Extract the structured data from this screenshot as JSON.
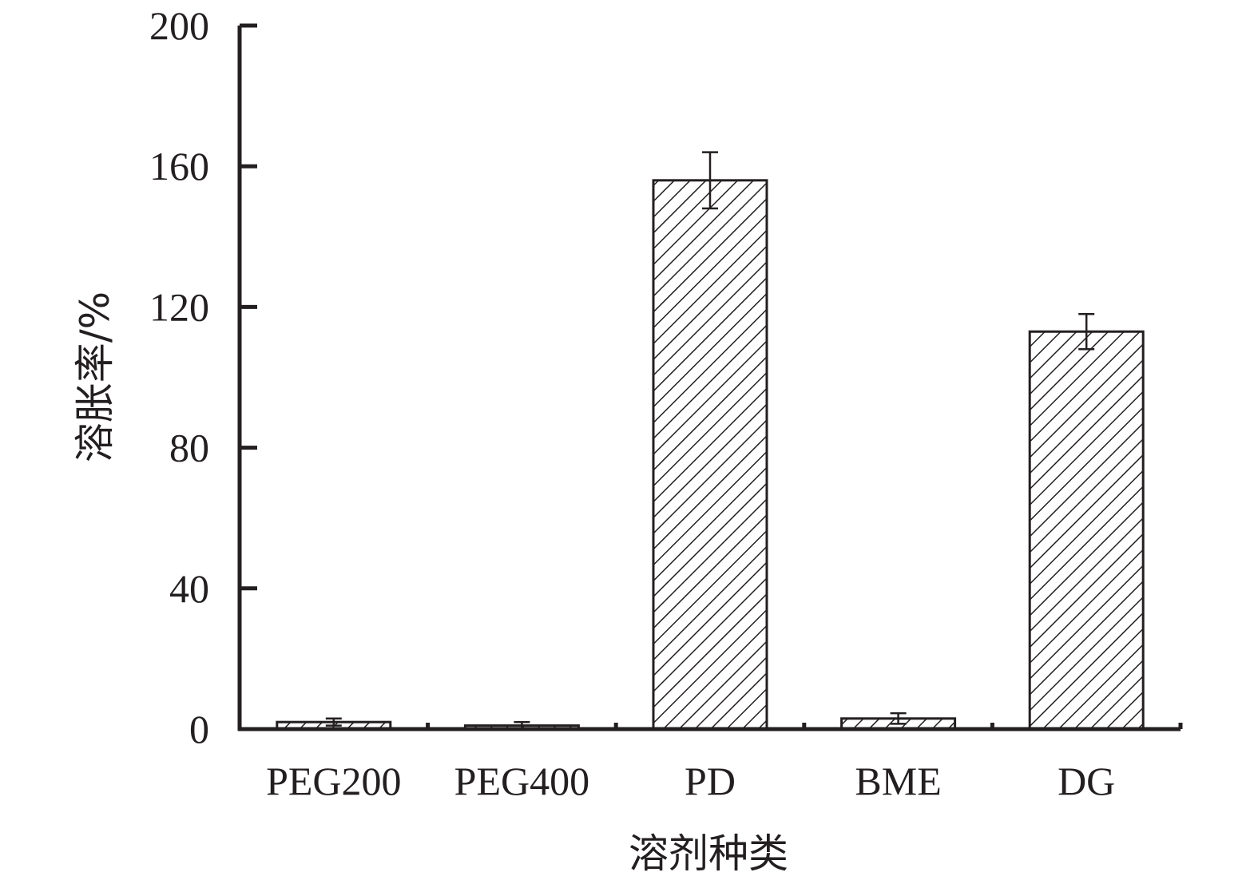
{
  "chart_data": {
    "type": "bar",
    "categories": [
      "PEG200",
      "PEG400",
      "PD",
      "BME",
      "DG"
    ],
    "values": [
      2,
      1,
      156,
      3,
      113
    ],
    "errors": [
      1,
      1,
      8,
      1.5,
      5
    ],
    "xlabel": "溶剂种类",
    "ylabel": "溶胀率/%",
    "ylim": [
      0,
      200
    ],
    "yticks": [
      "0",
      "40",
      "80",
      "120",
      "160",
      "200"
    ],
    "ytick_values": [
      0,
      40,
      80,
      120,
      160,
      200
    ],
    "bar_fill": "hatched",
    "grid": false
  },
  "colors": {
    "axis": "#231f20",
    "bar_stroke": "#231f20",
    "background": "#ffffff"
  }
}
